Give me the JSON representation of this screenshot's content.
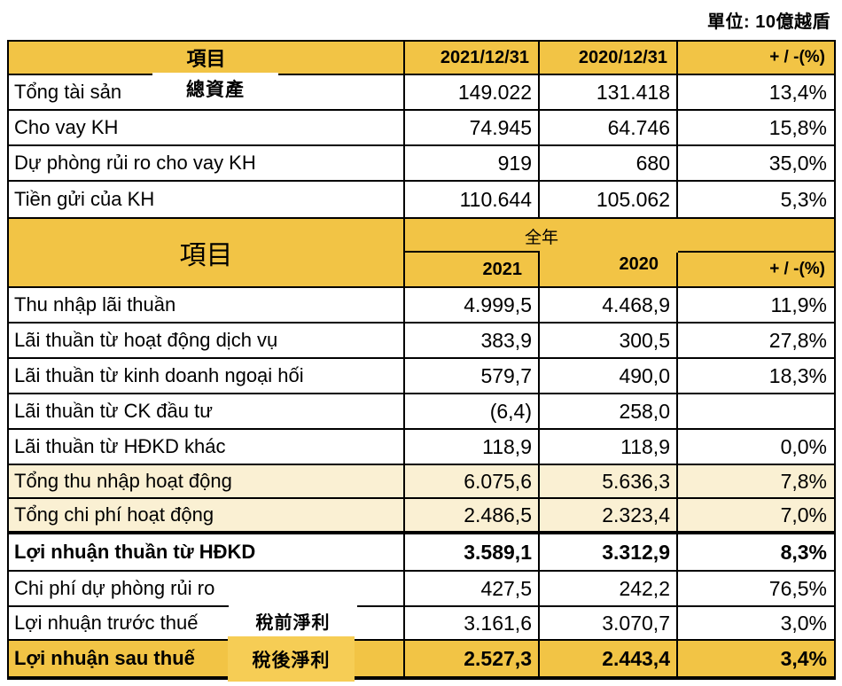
{
  "unit_note": "單位: 10億越盾",
  "colors": {
    "header_gold": "#F2C445",
    "highlight_cream": "#FAF0D3",
    "annotation_gold": "#F6CD55",
    "border": "#000000"
  },
  "table1": {
    "header": {
      "item": "項目",
      "col1": "2021/12/31",
      "col2": "2020/12/31",
      "col3": "+ / -(%)"
    },
    "rows": [
      {
        "label": "Tổng tài sản",
        "annotation": "總資產",
        "v1": "149.022",
        "v2": "131.418",
        "pct": "13,4%"
      },
      {
        "label": "Cho vay KH",
        "v1": "74.945",
        "v2": "64.746",
        "pct": "15,8%"
      },
      {
        "label": "Dự phòng rủi ro cho vay KH",
        "v1": "919",
        "v2": "680",
        "pct": "35,0%"
      },
      {
        "label": "Tiền gửi của KH",
        "v1": "110.644",
        "v2": "105.062",
        "pct": "5,3%"
      }
    ]
  },
  "table2": {
    "header": {
      "item": "項目",
      "span_label": "全年",
      "col1": "2021",
      "col2": "2020",
      "col3": "+ / -(%)"
    },
    "rows": [
      {
        "label": "Thu nhập lãi thuần",
        "v1": "4.999,5",
        "v2": "4.468,9",
        "pct": "11,9%"
      },
      {
        "label": "Lãi thuần từ hoạt động dịch vụ",
        "v1": "383,9",
        "v2": "300,5",
        "pct": "27,8%"
      },
      {
        "label": "Lãi thuần từ kinh doanh ngoại hối",
        "v1": "579,7",
        "v2": "490,0",
        "pct": "18,3%"
      },
      {
        "label": "Lãi thuần từ CK đầu tư",
        "v1": "(6,4)",
        "v2": "258,0",
        "pct": ""
      },
      {
        "label": "Lãi thuần từ HĐKD khác",
        "v1": "118,9",
        "v2": "118,9",
        "pct": "0,0%"
      },
      {
        "label": "Tổng thu nhập hoạt động",
        "v1": "6.075,6",
        "v2": "5.636,3",
        "pct": "7,8%"
      },
      {
        "label": "Tổng chi phí hoạt động",
        "v1": "2.486,5",
        "v2": "2.323,4",
        "pct": "7,0%"
      },
      {
        "label": "Lợi nhuận thuần từ HĐKD",
        "v1": "3.589,1",
        "v2": "3.312,9",
        "pct": "8,3%"
      },
      {
        "label": "Chi phí dự phòng rủi ro",
        "v1": "427,5",
        "v2": "242,2",
        "pct": "76,5%"
      },
      {
        "label": "Lợi nhuận trước thuế",
        "annotation": "稅前淨利",
        "v1": "3.161,6",
        "v2": "3.070,7",
        "pct": "3,0%"
      },
      {
        "label": "Lợi nhuận sau thuế",
        "annotation": "稅後淨利",
        "v1": "2.527,3",
        "v2": "2.443,4",
        "pct": "3,4%"
      }
    ]
  }
}
